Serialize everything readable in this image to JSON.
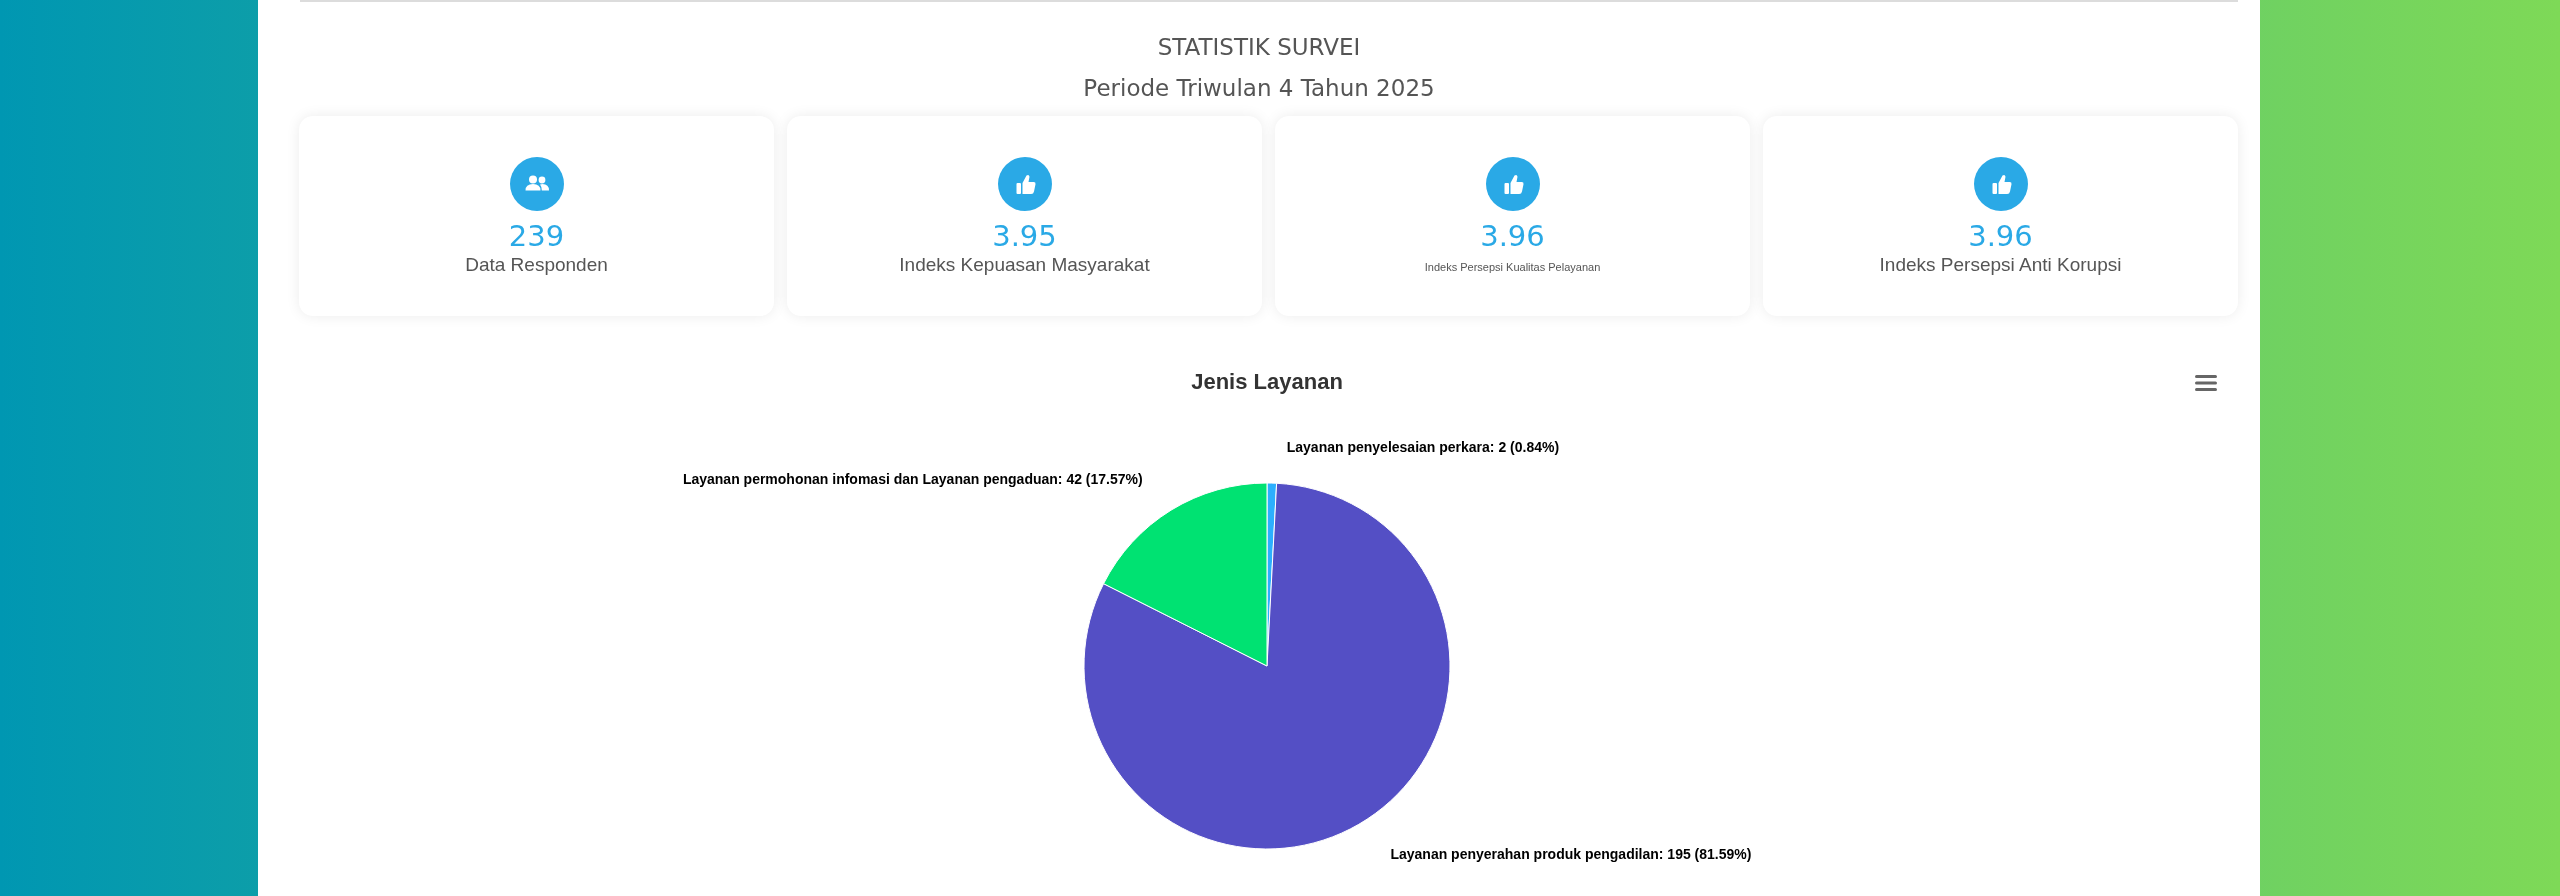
{
  "chart_data": [
    {
      "type": "other",
      "title": "STATISTIK SURVEI",
      "subtitle": "Periode Triwulan 4 Tahun 2025",
      "categories": [
        "Data Responden",
        "Indeks Kepuasan Masyarakat",
        "Indeks Persepsi Kualitas Pelayanan",
        "Indeks Persepsi Anti Korupsi"
      ],
      "values": [
        239,
        3.95,
        3.96,
        3.96
      ],
      "data_labels": true
    },
    {
      "type": "pie",
      "title": "Jenis Layanan",
      "categories": [
        "Layanan penyelesaian perkara",
        "Layanan penyerahan produk pengadilan",
        "Layanan permohonan infomasi dan Layanan pengaduan"
      ],
      "values": [
        2,
        195,
        42
      ],
      "colors": [
        "#2caffe",
        "#544fc5",
        "#00e272"
      ],
      "value_labels": [
        "2 (0.84%)",
        "195 (81.59%)",
        "42 (17.57%)"
      ]
    }
  ]
}
